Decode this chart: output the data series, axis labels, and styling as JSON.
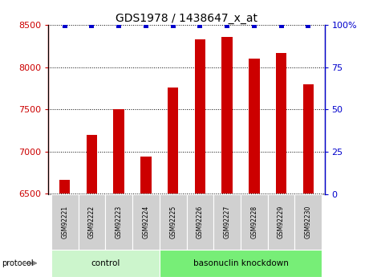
{
  "title": "GDS1978 / 1438647_x_at",
  "samples": [
    "GSM92221",
    "GSM92222",
    "GSM92223",
    "GSM92224",
    "GSM92225",
    "GSM92226",
    "GSM92227",
    "GSM92228",
    "GSM92229",
    "GSM92230"
  ],
  "counts": [
    6670,
    7200,
    7500,
    6940,
    7760,
    8330,
    8360,
    8100,
    8170,
    7800
  ],
  "groups": [
    {
      "label": "control",
      "start": 0,
      "end": 4
    },
    {
      "label": "basonuclin knockdown",
      "start": 4,
      "end": 10
    }
  ],
  "ylim_left": [
    6500,
    8500
  ],
  "ylim_right": [
    0,
    100
  ],
  "yticks_left": [
    6500,
    7000,
    7500,
    8000,
    8500
  ],
  "yticks_right": [
    0,
    25,
    50,
    75,
    100
  ],
  "bar_color": "#cc0000",
  "percentile_color": "#0000cc",
  "control_bg": "#ccf5cc",
  "knockdown_bg": "#77ee77",
  "xlabel_bg": "#d0d0d0",
  "protocol_arrow_color": "#888888",
  "bar_width": 0.4,
  "pct_marker_size": 5
}
